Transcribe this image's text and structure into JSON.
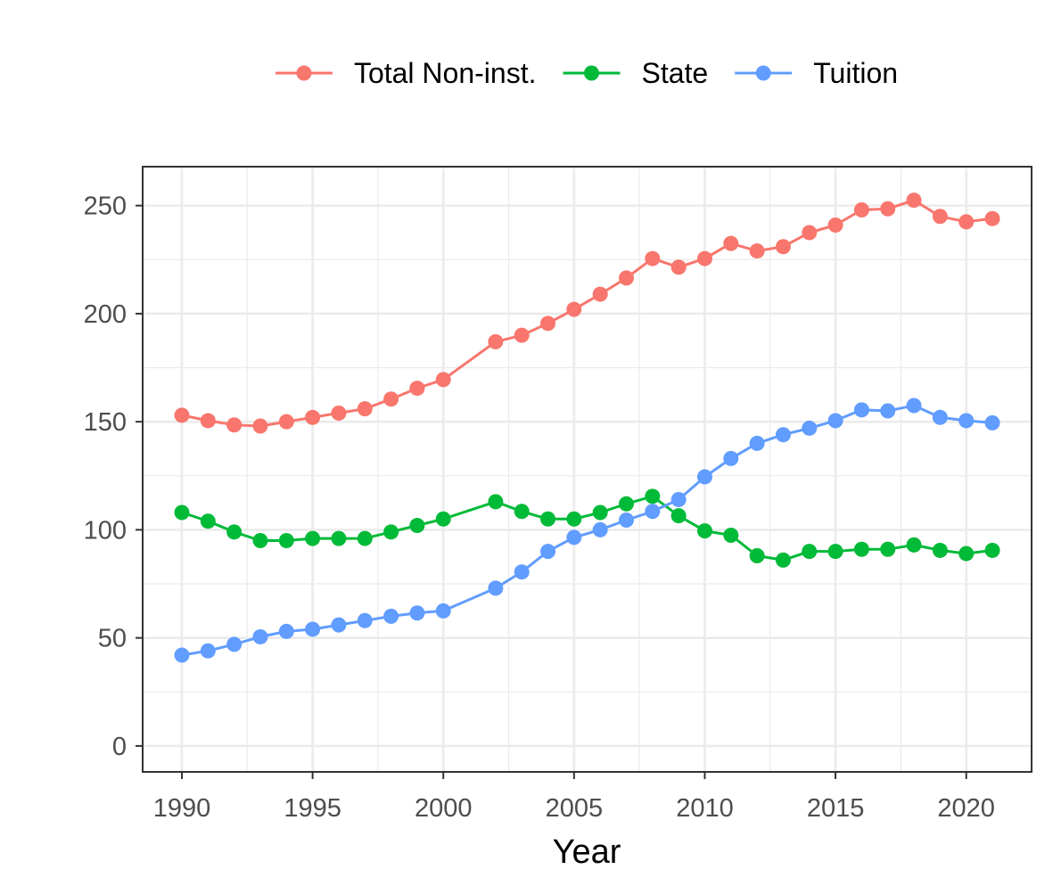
{
  "chart_data": {
    "type": "line",
    "title": "",
    "xlabel": "Year",
    "ylabel": "",
    "xlim": [
      1988.5,
      2022.5
    ],
    "ylim": [
      -12,
      268
    ],
    "x_ticks": [
      1990,
      1995,
      2000,
      2005,
      2010,
      2015,
      2020
    ],
    "y_ticks": [
      0,
      50,
      100,
      150,
      200,
      250
    ],
    "grid": true,
    "legend_position": "top",
    "series": [
      {
        "name": "Total Non-inst.",
        "color": "#F8766D",
        "points": [
          [
            1990,
            153
          ],
          [
            1991,
            150.5
          ],
          [
            1992,
            148.5
          ],
          [
            1993,
            148
          ],
          [
            1994,
            150
          ],
          [
            1995,
            152
          ],
          [
            1996,
            154
          ],
          [
            1997,
            156
          ],
          [
            1998,
            160.5
          ],
          [
            1999,
            165.5
          ],
          [
            2000,
            169.5
          ],
          [
            2002,
            187
          ],
          [
            2003,
            190
          ],
          [
            2004,
            195.5
          ],
          [
            2005,
            202
          ],
          [
            2006,
            209
          ],
          [
            2007,
            216.5
          ],
          [
            2008,
            225.5
          ],
          [
            2009,
            221.5
          ],
          [
            2010,
            225.5
          ],
          [
            2011,
            232.5
          ],
          [
            2012,
            229
          ],
          [
            2013,
            231
          ],
          [
            2014,
            237.5
          ],
          [
            2015,
            241
          ],
          [
            2016,
            248
          ],
          [
            2017,
            248.5
          ],
          [
            2018,
            252.5
          ],
          [
            2019,
            245
          ],
          [
            2020,
            242.5
          ],
          [
            2021,
            244
          ]
        ]
      },
      {
        "name": "State",
        "color": "#00BA38",
        "points": [
          [
            1990,
            108
          ],
          [
            1991,
            104
          ],
          [
            1992,
            99
          ],
          [
            1993,
            95
          ],
          [
            1994,
            95
          ],
          [
            1995,
            96
          ],
          [
            1996,
            96
          ],
          [
            1997,
            96
          ],
          [
            1998,
            99
          ],
          [
            1999,
            102
          ],
          [
            2000,
            105
          ],
          [
            2002,
            113
          ],
          [
            2003,
            108.5
          ],
          [
            2004,
            105
          ],
          [
            2005,
            105
          ],
          [
            2006,
            108
          ],
          [
            2007,
            112
          ],
          [
            2008,
            115.5
          ],
          [
            2009,
            106.5
          ],
          [
            2010,
            99.5
          ],
          [
            2011,
            97.5
          ],
          [
            2012,
            88
          ],
          [
            2013,
            86
          ],
          [
            2014,
            90
          ],
          [
            2015,
            90
          ],
          [
            2016,
            91
          ],
          [
            2017,
            91
          ],
          [
            2018,
            93
          ],
          [
            2019,
            90.5
          ],
          [
            2020,
            89
          ],
          [
            2021,
            90.5
          ]
        ]
      },
      {
        "name": "Tuition",
        "color": "#619CFF",
        "points": [
          [
            1990,
            42
          ],
          [
            1991,
            44
          ],
          [
            1992,
            47
          ],
          [
            1993,
            50.5
          ],
          [
            1994,
            53
          ],
          [
            1995,
            54
          ],
          [
            1996,
            56
          ],
          [
            1997,
            58
          ],
          [
            1998,
            60
          ],
          [
            1999,
            61.5
          ],
          [
            2000,
            62.5
          ],
          [
            2002,
            73
          ],
          [
            2003,
            80.5
          ],
          [
            2004,
            90
          ],
          [
            2005,
            96.5
          ],
          [
            2006,
            100
          ],
          [
            2007,
            104.5
          ],
          [
            2008,
            108.5
          ],
          [
            2009,
            114
          ],
          [
            2010,
            124.5
          ],
          [
            2011,
            133
          ],
          [
            2012,
            140
          ],
          [
            2013,
            144
          ],
          [
            2014,
            147
          ],
          [
            2015,
            150.5
          ],
          [
            2016,
            155.5
          ],
          [
            2017,
            155
          ],
          [
            2018,
            157.5
          ],
          [
            2019,
            152
          ],
          [
            2020,
            150.5
          ],
          [
            2021,
            149.5
          ]
        ]
      }
    ]
  }
}
